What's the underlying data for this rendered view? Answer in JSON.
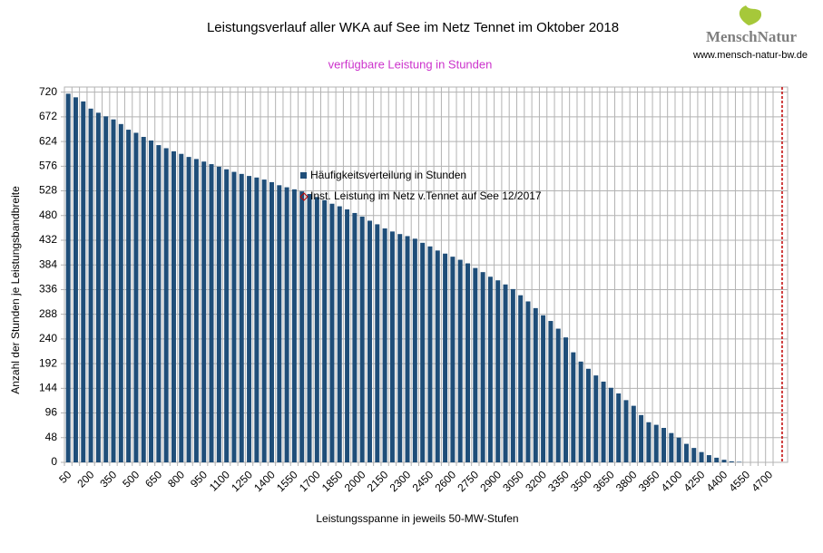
{
  "chart_data": {
    "type": "bar",
    "title": "Leistungsverlauf aller WKA auf See im Netz Tennet im Oktober 2018",
    "subtitle": "verfügbare Leistung in Stunden",
    "x_label": "Leistungsspanne in jeweils 50-MW-Stufen",
    "y_label": "Anzahl der Stunden je Leistungsbandbreite",
    "logo": {
      "name": "MenschNatur",
      "url": "www.mensch-natur-bw.de"
    },
    "categories": [
      "50",
      null,
      null,
      "200",
      null,
      null,
      "350",
      null,
      null,
      "500",
      null,
      null,
      "650",
      null,
      null,
      "800",
      null,
      null,
      "950",
      null,
      null,
      "1100",
      null,
      null,
      "1250",
      null,
      null,
      "1400",
      null,
      null,
      "1550",
      null,
      null,
      "1700",
      null,
      null,
      "1850",
      null,
      null,
      "2000",
      null,
      null,
      "2150",
      null,
      null,
      "2300",
      null,
      null,
      "2450",
      null,
      null,
      "2600",
      null,
      null,
      "2750",
      null,
      null,
      "2900",
      null,
      null,
      "3050",
      null,
      null,
      "3200",
      null,
      null,
      "3350",
      null,
      null,
      "3500",
      null,
      null,
      "3650",
      null,
      null,
      "3800",
      null,
      null,
      "3950",
      null,
      null,
      "4100",
      null,
      null,
      "4250",
      null,
      null,
      "4400",
      null,
      null,
      "4550",
      null,
      null,
      "4700"
    ],
    "series": [
      {
        "name": "Häufigkeitsverteilung in Stunden",
        "color": "#1f4e79",
        "values": [
          717,
          710,
          702,
          688,
          680,
          673,
          667,
          658,
          647,
          641,
          633,
          626,
          617,
          611,
          605,
          600,
          594,
          590,
          585,
          580,
          575,
          570,
          565,
          561,
          557,
          554,
          550,
          545,
          539,
          535,
          531,
          527,
          522,
          516,
          510,
          503,
          498,
          492,
          485,
          478,
          470,
          463,
          455,
          449,
          444,
          440,
          435,
          427,
          420,
          412,
          406,
          400,
          394,
          387,
          378,
          370,
          361,
          354,
          346,
          337,
          325,
          313,
          300,
          286,
          275,
          260,
          243,
          214,
          196,
          182,
          169,
          157,
          145,
          134,
          121,
          110,
          92,
          78,
          73,
          67,
          57,
          48,
          36,
          28,
          20,
          14,
          9,
          5,
          2,
          1,
          0,
          0,
          0,
          0
        ]
      },
      {
        "name": "Inst. Leistung im Netz v.Tennet auf See 12/2017",
        "color": "#c00000",
        "x": 4785
      }
    ],
    "ylim": [
      0,
      730
    ],
    "yticks": [
      0,
      48,
      96,
      144,
      192,
      240,
      288,
      336,
      384,
      432,
      480,
      528,
      576,
      624,
      672,
      720
    ],
    "grid": true
  }
}
